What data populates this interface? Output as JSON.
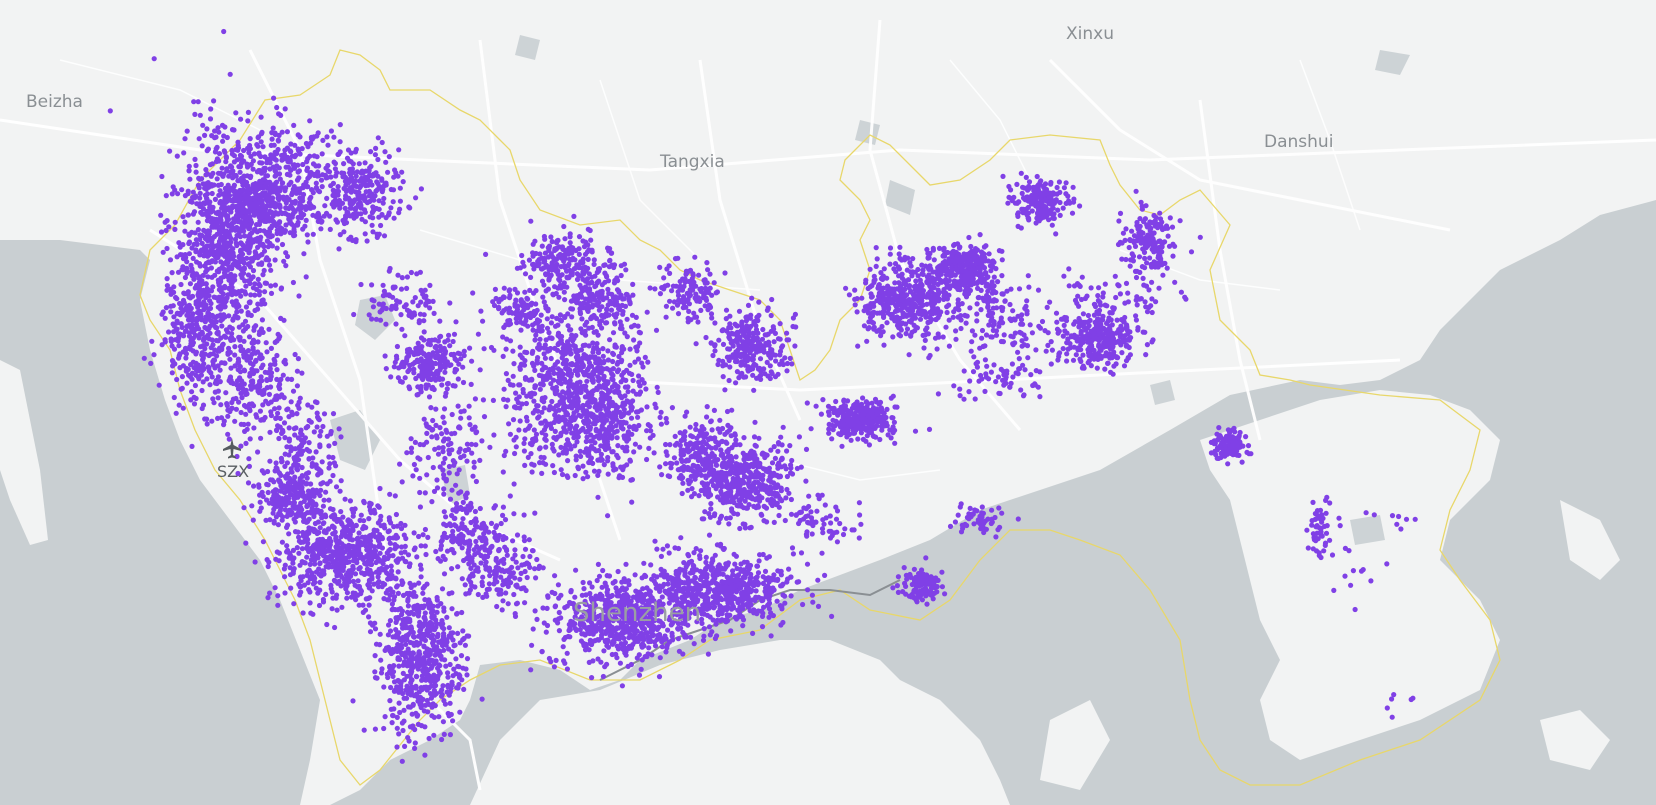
{
  "map": {
    "place_labels": [
      {
        "name": "Beizha"
      },
      {
        "name": "Tangxia"
      },
      {
        "name": "Xinxu"
      },
      {
        "name": "Danshui"
      },
      {
        "name": "Shenzhen"
      }
    ],
    "airport": {
      "code": "SZX",
      "icon": "airplane-icon"
    },
    "colors": {
      "water": "#c9cfd2",
      "land": "#f2f3f3",
      "boundary": "#e8d76a",
      "point": "#8040e6",
      "road": "#ffffff"
    }
  }
}
